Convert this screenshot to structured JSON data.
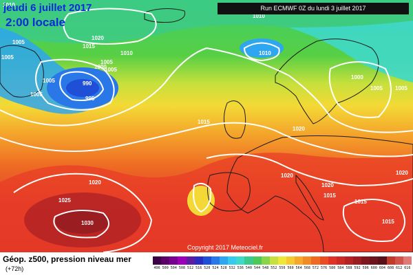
{
  "header": {
    "date": "jeudi 6 juillet 2017",
    "local_time": "2:00 locale",
    "run": "Run ECMWF 0Z du lundi 3 juillet 2017"
  },
  "copyright": "Copyright 2017 Meteociel.fr",
  "legend": {
    "title": "Géop. z500, pression niveau mer",
    "subtitle": "(+72h)",
    "scale_values": [
      "496",
      "500",
      "504",
      "508",
      "512",
      "516",
      "520",
      "524",
      "528",
      "532",
      "536",
      "540",
      "544",
      "548",
      "552",
      "556",
      "560",
      "564",
      "568",
      "572",
      "576",
      "580",
      "584",
      "588",
      "592",
      "596",
      "600",
      "604",
      "608",
      "612",
      "616"
    ],
    "scale_colors": [
      "#3b0046",
      "#5a0067",
      "#7a0090",
      "#9b00b8",
      "#5b1ea0",
      "#2a2cbf",
      "#1f4fd6",
      "#2a78e8",
      "#2ea6f0",
      "#37c9ee",
      "#3fd8c9",
      "#3cc98a",
      "#4fc85a",
      "#8ad44a",
      "#c7e03f",
      "#f0e63a",
      "#f6c931",
      "#f6a82a",
      "#f28a25",
      "#ee6a23",
      "#ea4d24",
      "#e13325",
      "#cc2a25",
      "#b32324",
      "#9a1d22",
      "#7f1720",
      "#6c141c",
      "#5a1018",
      "#c23a2a",
      "#d2534b",
      "#e07a76"
    ]
  },
  "isobars": [
    "1010",
    "1005",
    "1015",
    "1020",
    "1010",
    "1010",
    "1005",
    "1005",
    "1005",
    "1000",
    "990",
    "995",
    "1005",
    "1005",
    "1015",
    "1020",
    "1010",
    "1000",
    "1005",
    "1005",
    "1020",
    "1020",
    "1020",
    "1015",
    "1015",
    "1015",
    "1020",
    "1025",
    "1030"
  ],
  "pressure_centers": [
    {
      "label": "990",
      "type": "low"
    },
    {
      "label": "1010",
      "type": "low"
    },
    {
      "label": "1030",
      "type": "high"
    }
  ]
}
